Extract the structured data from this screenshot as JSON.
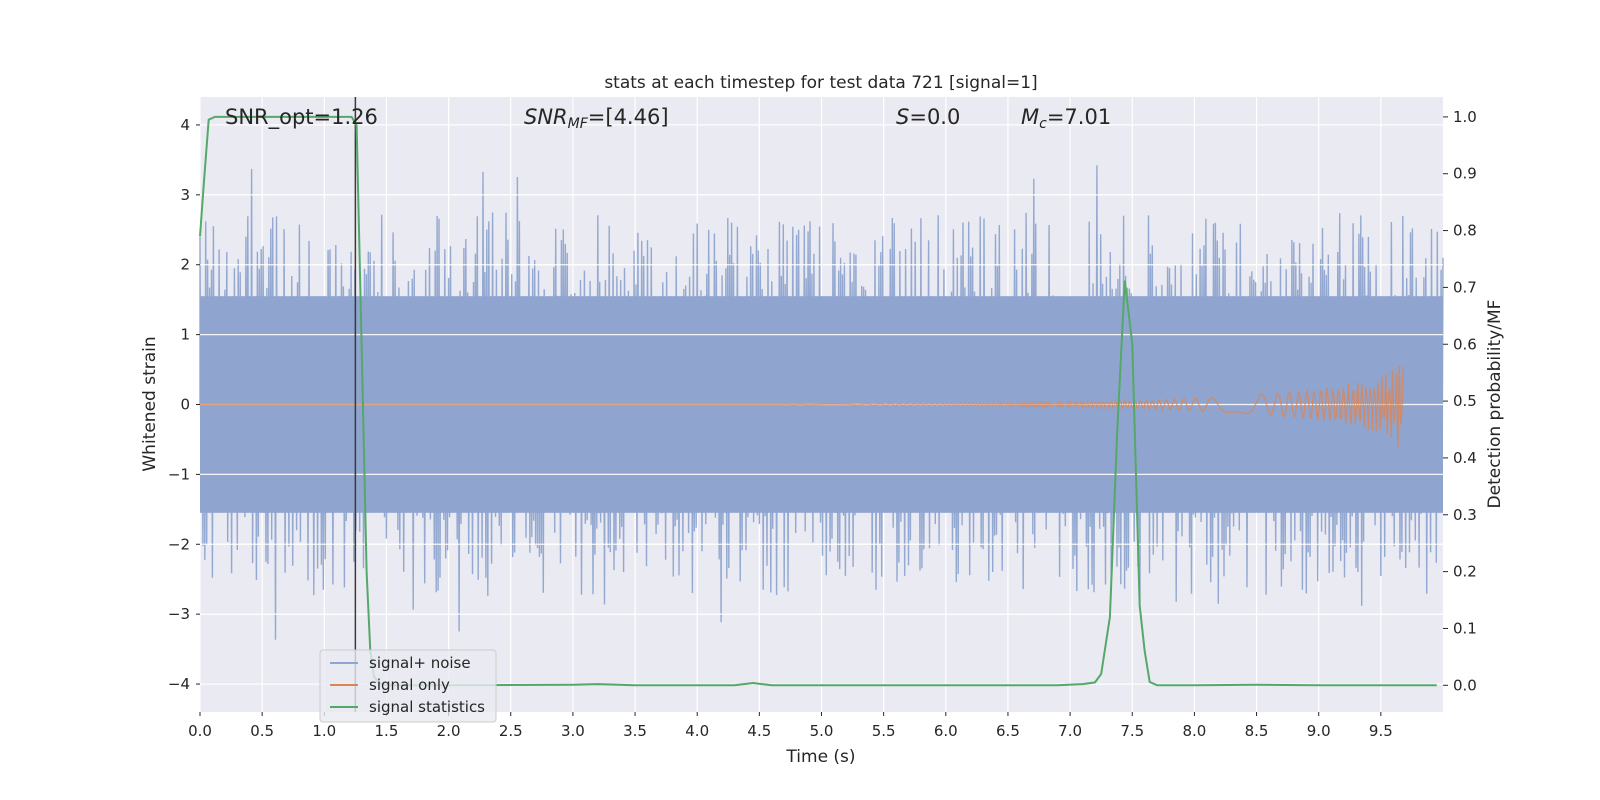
{
  "chart_data": {
    "type": "line",
    "title": "stats at each timestep for test data 721 [signal=1]",
    "xlabel": "Time (s)",
    "ylabel": "Whitened strain",
    "ylabel_right": "Detection probability/MF",
    "xlim": [
      0,
      10
    ],
    "ylim": [
      -4.4,
      4.4
    ],
    "ylim_right": [
      -0.047,
      1.035
    ],
    "x_ticks": [
      0.0,
      0.5,
      1.0,
      1.5,
      2.0,
      2.5,
      3.0,
      3.5,
      4.0,
      4.5,
      5.0,
      5.5,
      6.0,
      6.5,
      7.0,
      7.5,
      8.0,
      8.5,
      9.0,
      9.5
    ],
    "x_tick_labels": [
      "0.0",
      "0.5",
      "1.0",
      "1.5",
      "2.0",
      "2.5",
      "3.0",
      "3.5",
      "4.0",
      "4.5",
      "5.0",
      "5.5",
      "6.0",
      "6.5",
      "7.0",
      "7.5",
      "8.0",
      "8.5",
      "9.0",
      "9.5"
    ],
    "y_ticks": [
      4,
      3,
      2,
      1,
      0,
      -1,
      -2,
      -3,
      -4
    ],
    "y_tick_labels": [
      "4",
      "3",
      "2",
      "1",
      "0",
      "−1",
      "−2",
      "−3",
      "−4"
    ],
    "y2_ticks": [
      1.0,
      0.9,
      0.8,
      0.7,
      0.6,
      0.5,
      0.4,
      0.3,
      0.2,
      0.1,
      0.0
    ],
    "y2_tick_labels": [
      "1.0",
      "0.9",
      "0.8",
      "0.7",
      "0.6",
      "0.5",
      "0.4",
      "0.3",
      "0.2",
      "0.1",
      "0.0"
    ],
    "grid": true,
    "legend_position": "lower-left",
    "marker_time": 1.25,
    "annotations": {
      "snr_opt": "SNR_opt=1.26",
      "snr_mf_prefix": "SNR",
      "snr_mf_sub": "MF",
      "snr_mf_suffix": "=[4.46]",
      "s_prefix": "S",
      "s_suffix": "=0.0",
      "mc_prefix": "M",
      "mc_sub": "c",
      "mc_suffix": "=7.01"
    },
    "series": [
      {
        "name": "signal+ noise",
        "color": "#8fa5cf",
        "kind": "noise",
        "amplitude_envelope": [
          1.0,
          3.95
        ],
        "sample_rate_hz": 1024
      },
      {
        "name": "signal only",
        "color": "#dd8452",
        "kind": "chirp",
        "end_time": 9.68,
        "peak_amplitude": 0.18
      },
      {
        "name": "signal statistics",
        "color": "#55a868",
        "axis": "right",
        "x": [
          0.0,
          0.03,
          0.07,
          0.12,
          1.0,
          1.22,
          1.26,
          1.3,
          1.34,
          1.37,
          1.4,
          1.44,
          1.5,
          2.0,
          3.0,
          3.2,
          3.5,
          4.3,
          4.45,
          4.6,
          5.0,
          6.0,
          6.9,
          7.1,
          7.2,
          7.25,
          7.32,
          7.38,
          7.44,
          7.5,
          7.56,
          7.6,
          7.64,
          7.7,
          8.0,
          8.5,
          9.0,
          9.5,
          9.95
        ],
        "y": [
          0.79,
          0.88,
          0.995,
          1.0,
          1.0,
          1.0,
          0.985,
          0.6,
          0.2,
          0.06,
          0.015,
          0.004,
          0.0,
          0.0,
          0.001,
          0.002,
          0.0,
          0.0,
          0.004,
          0.0,
          0.0,
          0.0,
          0.0,
          0.002,
          0.005,
          0.02,
          0.12,
          0.45,
          0.712,
          0.6,
          0.14,
          0.06,
          0.006,
          0.0,
          0.0,
          0.001,
          0.0,
          0.0,
          0.0
        ]
      }
    ]
  }
}
